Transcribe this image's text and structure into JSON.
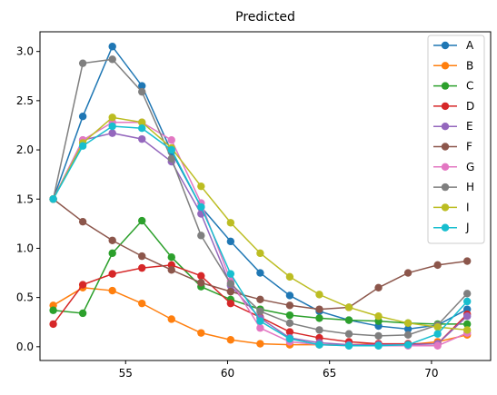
{
  "chart_data": {
    "type": "line",
    "title": "Predicted",
    "xlabel": "",
    "ylabel": "",
    "xlim": [
      50.8,
      72.9
    ],
    "ylim": [
      -0.14,
      3.2
    ],
    "grid": false,
    "legend_position": "top-right",
    "x_ticks": [
      55,
      60,
      65,
      70
    ],
    "y_ticks": [
      0.0,
      0.5,
      1.0,
      1.5,
      2.0,
      2.5,
      3.0
    ],
    "x_tick_labels": [
      "55",
      "60",
      "65",
      "70"
    ],
    "y_tick_labels": [
      "0.0",
      "0.5",
      "1.0",
      "1.5",
      "2.0",
      "2.5",
      "3.0"
    ],
    "x": [
      51.45,
      52.9,
      54.35,
      55.8,
      57.25,
      58.7,
      60.15,
      61.6,
      63.05,
      64.5,
      65.95,
      67.4,
      68.85,
      70.3,
      71.75
    ],
    "series": [
      {
        "name": "A",
        "color": "#1f77b4",
        "values": [
          1.5,
          2.34,
          3.05,
          2.65,
          1.98,
          1.42,
          1.07,
          0.75,
          0.52,
          0.36,
          0.27,
          0.21,
          0.18,
          0.22,
          0.38
        ]
      },
      {
        "name": "B",
        "color": "#ff7f0e",
        "values": [
          0.42,
          0.6,
          0.57,
          0.44,
          0.28,
          0.14,
          0.07,
          0.03,
          0.02,
          0.02,
          0.02,
          0.03,
          0.02,
          0.05,
          0.12
        ]
      },
      {
        "name": "C",
        "color": "#2ca02c",
        "values": [
          0.37,
          0.34,
          0.95,
          1.28,
          0.91,
          0.61,
          0.48,
          0.38,
          0.32,
          0.29,
          0.27,
          0.26,
          0.24,
          0.23,
          0.23
        ]
      },
      {
        "name": "D",
        "color": "#d62728",
        "values": [
          0.23,
          0.63,
          0.74,
          0.8,
          0.83,
          0.72,
          0.44,
          0.3,
          0.15,
          0.09,
          0.05,
          0.03,
          0.03,
          0.03,
          0.33
        ]
      },
      {
        "name": "E",
        "color": "#9467bd",
        "values": [
          1.5,
          2.1,
          2.17,
          2.11,
          1.88,
          1.35,
          0.62,
          0.29,
          0.09,
          0.04,
          0.02,
          0.02,
          0.02,
          0.03,
          0.31
        ]
      },
      {
        "name": "F",
        "color": "#8c564b",
        "values": [
          1.5,
          1.27,
          1.08,
          0.92,
          0.78,
          0.65,
          0.56,
          0.48,
          0.42,
          0.38,
          0.4,
          0.6,
          0.75,
          0.83,
          0.87
        ]
      },
      {
        "name": "G",
        "color": "#e377c2",
        "values": [
          1.5,
          2.1,
          2.28,
          2.28,
          2.1,
          1.46,
          0.67,
          0.19,
          0.05,
          0.02,
          0.01,
          0.01,
          0.01,
          0.01,
          0.14
        ]
      },
      {
        "name": "H",
        "color": "#7f7f7f",
        "values": [
          1.5,
          2.88,
          2.92,
          2.59,
          1.91,
          1.13,
          0.64,
          0.36,
          0.24,
          0.17,
          0.13,
          0.11,
          0.12,
          0.22,
          0.54
        ]
      },
      {
        "name": "I",
        "color": "#bcbd22",
        "values": [
          1.5,
          2.07,
          2.33,
          2.28,
          2.02,
          1.63,
          1.26,
          0.95,
          0.71,
          0.53,
          0.4,
          0.31,
          0.24,
          0.2,
          0.17
        ]
      },
      {
        "name": "J",
        "color": "#17becf",
        "values": [
          1.5,
          2.04,
          2.24,
          2.22,
          2.0,
          1.42,
          0.74,
          0.26,
          0.08,
          0.02,
          0.01,
          0.01,
          0.02,
          0.13,
          0.46
        ]
      }
    ]
  }
}
